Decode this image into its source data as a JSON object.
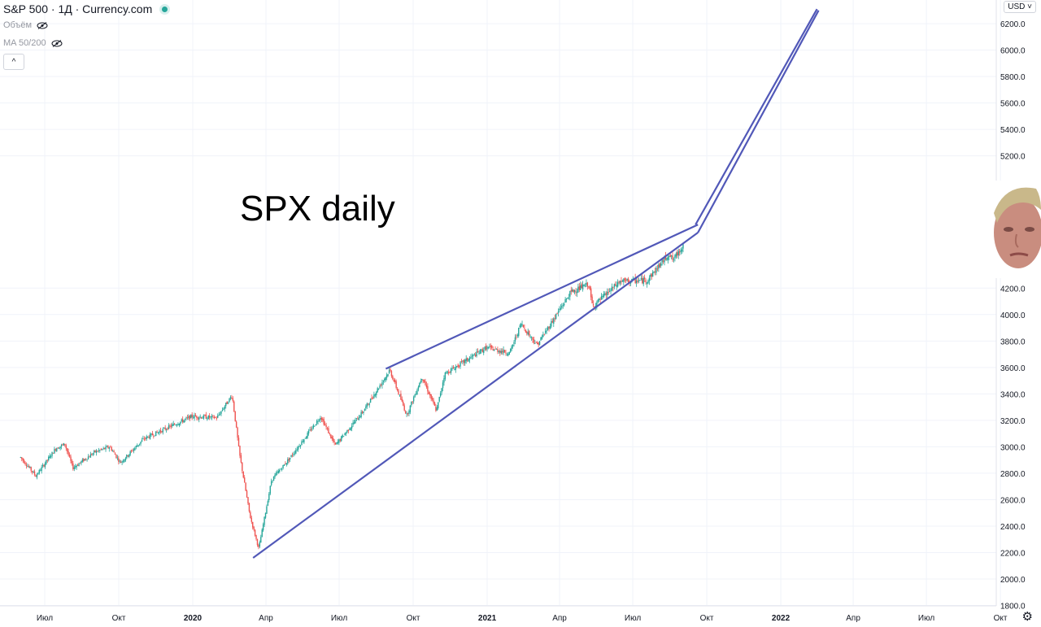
{
  "header": {
    "symbol": "S&P 500 · 1Д · Currency.com",
    "indicators": [
      {
        "label": "Объём"
      },
      {
        "label": "MA 50/200"
      }
    ],
    "collapse_glyph": "^"
  },
  "currency_label": "USD",
  "annotation": "SPX daily",
  "icons": {
    "settings": "gear-icon",
    "eye": "eye-hidden-icon",
    "live": "live-dot-icon"
  },
  "colors": {
    "up": "#26a69a",
    "down": "#ef5350",
    "trendline": "#5158b8",
    "grid": "#f0f3fa",
    "axis_text": "#131722"
  },
  "chart_data": {
    "type": "candlestick",
    "title": "",
    "ylim": [
      1800,
      6300
    ],
    "y_ticks": [
      "1800.0",
      "2000.0",
      "2200.0",
      "2400.0",
      "2600.0",
      "2800.0",
      "3000.0",
      "3200.0",
      "3400.0",
      "3600.0",
      "3800.0",
      "4000.0",
      "4200.0",
      "5200.0",
      "5400.0",
      "5600.0",
      "5800.0",
      "6000.0",
      "6200.0"
    ],
    "x_ticks": [
      {
        "label": "Июл",
        "date": "2019-07-01"
      },
      {
        "label": "Окт",
        "date": "2019-10-01"
      },
      {
        "label": "2020",
        "date": "2020-01-01",
        "bold": true
      },
      {
        "label": "Апр",
        "date": "2020-04-01"
      },
      {
        "label": "Июл",
        "date": "2020-07-01"
      },
      {
        "label": "Окт",
        "date": "2020-10-01"
      },
      {
        "label": "2021",
        "date": "2021-01-01",
        "bold": true
      },
      {
        "label": "Апр",
        "date": "2021-04-01"
      },
      {
        "label": "Июл",
        "date": "2021-07-01"
      },
      {
        "label": "Окт",
        "date": "2021-10-01"
      },
      {
        "label": "2022",
        "date": "2022-01-01",
        "bold": true
      },
      {
        "label": "Апр",
        "date": "2022-04-01"
      },
      {
        "label": "Июл",
        "date": "2022-07-01"
      },
      {
        "label": "Окт",
        "date": "2022-10-01"
      }
    ],
    "price_path": [
      {
        "date": "2019-06-01",
        "close": 2920
      },
      {
        "date": "2019-06-20",
        "close": 2780
      },
      {
        "date": "2019-07-15",
        "close": 2990
      },
      {
        "date": "2019-07-26",
        "close": 3020
      },
      {
        "date": "2019-08-05",
        "close": 2840
      },
      {
        "date": "2019-09-01",
        "close": 2960
      },
      {
        "date": "2019-09-20",
        "close": 3000
      },
      {
        "date": "2019-10-03",
        "close": 2880
      },
      {
        "date": "2019-11-01",
        "close": 3060
      },
      {
        "date": "2019-12-31",
        "close": 3230
      },
      {
        "date": "2020-01-31",
        "close": 3220
      },
      {
        "date": "2020-02-19",
        "close": 3390
      },
      {
        "date": "2020-02-28",
        "close": 2950
      },
      {
        "date": "2020-03-12",
        "close": 2480
      },
      {
        "date": "2020-03-23",
        "close": 2230
      },
      {
        "date": "2020-04-08",
        "close": 2750
      },
      {
        "date": "2020-04-30",
        "close": 2910
      },
      {
        "date": "2020-06-08",
        "close": 3230
      },
      {
        "date": "2020-06-26",
        "close": 3010
      },
      {
        "date": "2020-07-31",
        "close": 3270
      },
      {
        "date": "2020-09-02",
        "close": 3580
      },
      {
        "date": "2020-09-23",
        "close": 3240
      },
      {
        "date": "2020-10-12",
        "close": 3530
      },
      {
        "date": "2020-10-30",
        "close": 3270
      },
      {
        "date": "2020-11-09",
        "close": 3550
      },
      {
        "date": "2020-12-31",
        "close": 3750
      },
      {
        "date": "2021-01-29",
        "close": 3710
      },
      {
        "date": "2021-02-12",
        "close": 3930
      },
      {
        "date": "2021-03-04",
        "close": 3770
      },
      {
        "date": "2021-04-15",
        "close": 4170
      },
      {
        "date": "2021-05-07",
        "close": 4230
      },
      {
        "date": "2021-05-12",
        "close": 4060
      },
      {
        "date": "2021-06-15",
        "close": 4250
      },
      {
        "date": "2021-07-19",
        "close": 4260
      },
      {
        "date": "2021-08-15",
        "close": 4460
      },
      {
        "date": "2021-08-20",
        "close": 4410
      },
      {
        "date": "2021-09-02",
        "close": 4530
      }
    ],
    "trendlines": [
      {
        "name": "upper-wedge",
        "from": {
          "date": "2020-08-28",
          "price": 3590
        },
        "to": {
          "date": "2021-09-20",
          "price": 4680
        }
      },
      {
        "name": "lower-wedge",
        "from": {
          "date": "2020-03-16",
          "price": 2160
        },
        "to": {
          "date": "2021-09-20",
          "price": 4620
        }
      },
      {
        "name": "projection-1",
        "from": {
          "date": "2021-09-17",
          "price": 4680
        },
        "to": {
          "date": "2022-02-15",
          "price": 6310
        }
      },
      {
        "name": "projection-2",
        "from": {
          "date": "2021-09-20",
          "price": 4620
        },
        "to": {
          "date": "2022-02-17",
          "price": 6300
        }
      }
    ]
  }
}
